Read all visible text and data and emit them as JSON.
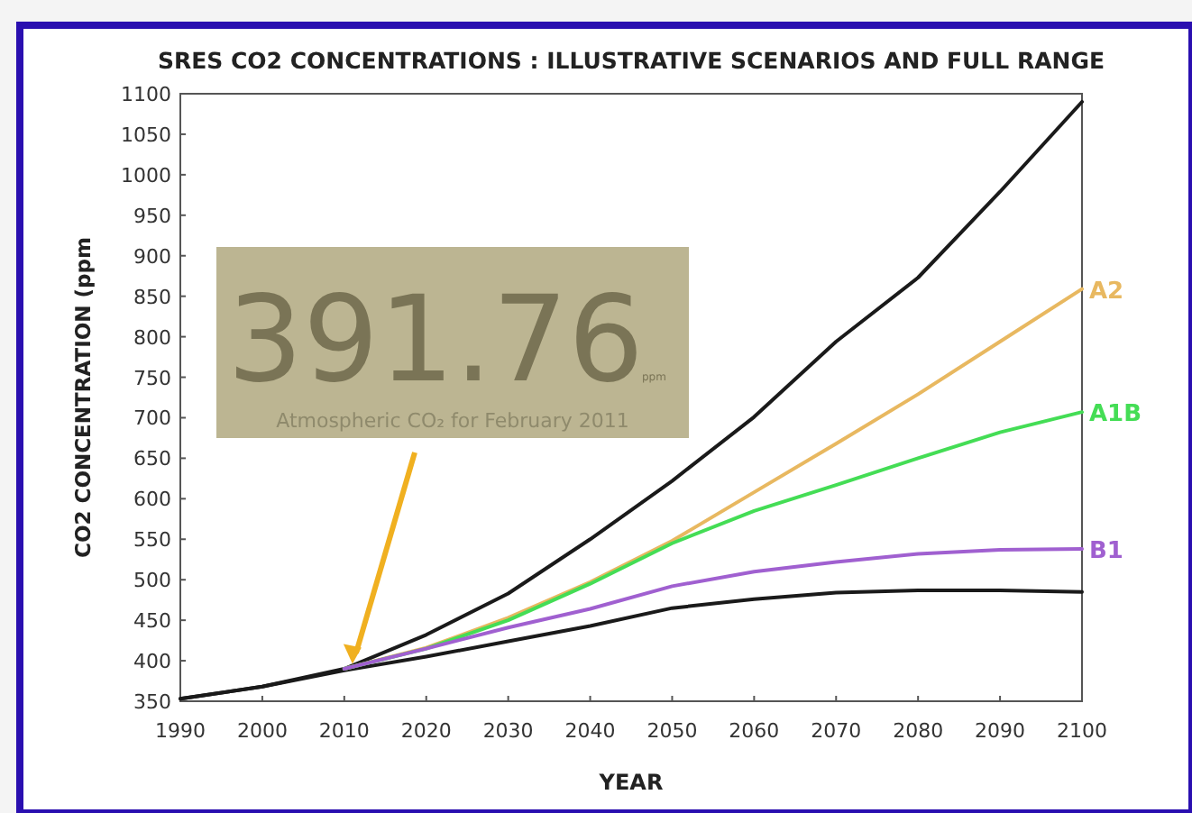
{
  "chart_data": {
    "type": "line",
    "title": "SRES CO2 CONCENTRATIONS : ILLUSTRATIVE SCENARIOS AND FULL RANGE",
    "xlabel": "YEAR",
    "ylabel": "CO2 CONCENTRATION  (ppm",
    "xlim": [
      1990,
      2100
    ],
    "ylim": [
      350,
      1100
    ],
    "xticks": [
      1990,
      2000,
      2010,
      2020,
      2030,
      2040,
      2050,
      2060,
      2070,
      2080,
      2090,
      2100
    ],
    "yticks": [
      350,
      400,
      450,
      500,
      550,
      600,
      650,
      700,
      750,
      800,
      850,
      900,
      950,
      1000,
      1050,
      1100
    ],
    "grid": false,
    "legend": false,
    "marker": "none",
    "line_style": "solid",
    "annotations": [
      {
        "text": "391.76",
        "x": 2011,
        "y": 391.76
      },
      "ppm",
      "Atmospheric CO₂ for February 2011"
    ],
    "series": [
      {
        "color": "#1a1a1a",
        "x": [
          1990,
          2000,
          2010,
          2020,
          2030,
          2040,
          2050,
          2060,
          2070,
          2080,
          2090,
          2100
        ],
        "values": [
          353,
          368,
          390,
          432,
          483,
          550,
          622,
          701,
          794,
          873,
          979,
          1090
        ]
      },
      {
        "color": "#1a1a1a",
        "x": [
          1990,
          2000,
          2010,
          2020,
          2030,
          2040,
          2050,
          2060,
          2070,
          2080,
          2090,
          2100
        ],
        "values": [
          353,
          368,
          388,
          405,
          424,
          443,
          465,
          476,
          484,
          487,
          487,
          485
        ]
      },
      {
        "name": "A2",
        "color": "#e8b860",
        "x": [
          2010,
          2020,
          2030,
          2040,
          2050,
          2060,
          2070,
          2080,
          2090,
          2100
        ],
        "values": [
          390,
          416,
          453,
          497,
          548,
          608,
          668,
          729,
          794,
          859
        ]
      },
      {
        "name": "A1B",
        "color": "#44dd55",
        "x": [
          2010,
          2020,
          2030,
          2040,
          2050,
          2060,
          2070,
          2080,
          2090,
          2100
        ],
        "values": [
          390,
          415,
          450,
          495,
          545,
          585,
          617,
          650,
          682,
          707
        ]
      },
      {
        "name": "B1",
        "color": "#a060d0",
        "x": [
          2010,
          2020,
          2030,
          2040,
          2050,
          2060,
          2070,
          2080,
          2090,
          2100
        ],
        "values": [
          390,
          415,
          441,
          464,
          492,
          510,
          522,
          532,
          537,
          538
        ]
      }
    ]
  }
}
